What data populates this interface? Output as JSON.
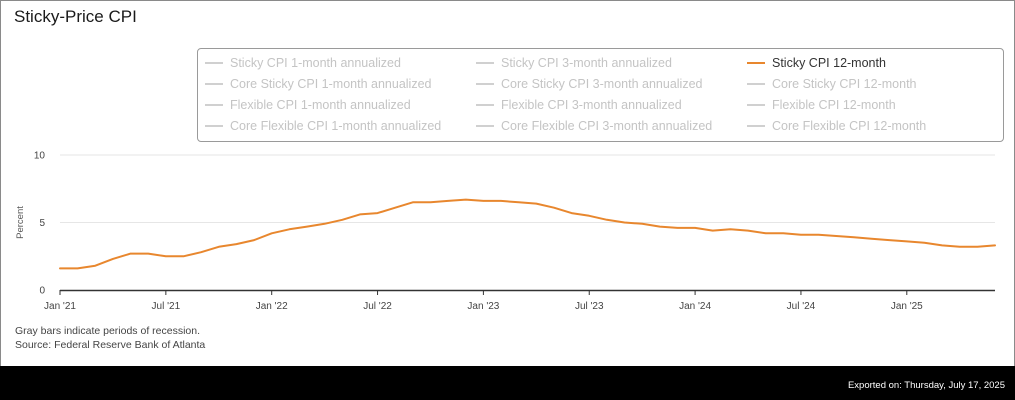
{
  "title": "Sticky-Price CPI",
  "legend": {
    "items": [
      {
        "label": "Sticky CPI 1-month annualized",
        "active": false
      },
      {
        "label": "Sticky CPI 3-month annualized",
        "active": false
      },
      {
        "label": "Sticky CPI 12-month",
        "active": true
      },
      {
        "label": "Core Sticky CPI 1-month annualized",
        "active": false
      },
      {
        "label": "Core Sticky CPI 3-month annualized",
        "active": false
      },
      {
        "label": "Core Sticky CPI 12-month",
        "active": false
      },
      {
        "label": "Flexible CPI 1-month annualized",
        "active": false
      },
      {
        "label": "Flexible CPI 3-month annualized",
        "active": false
      },
      {
        "label": "Flexible CPI 12-month",
        "active": false
      },
      {
        "label": "Core Flexible CPI 1-month annualized",
        "active": false
      },
      {
        "label": "Core Flexible CPI 3-month annualized",
        "active": false
      },
      {
        "label": "Core Flexible CPI 12-month",
        "active": false
      }
    ]
  },
  "notes": {
    "recession": "Gray bars indicate periods of recession.",
    "source": "Source: Federal Reserve Bank of Atlanta"
  },
  "footer": {
    "exported": "Exported on: Thursday, July 17, 2025"
  },
  "colors": {
    "series": "#e8872e",
    "grid": "#e6e6e6",
    "axis": "#333333"
  },
  "chart_data": {
    "type": "line",
    "title": "Sticky-Price CPI",
    "ylabel": "Percent",
    "xlabel": "",
    "ylim": [
      0,
      10
    ],
    "yticks": [
      0,
      5,
      10
    ],
    "xlim": [
      "2021-01",
      "2025-06"
    ],
    "xticks": [
      {
        "date": "2021-01",
        "label": "Jan '21"
      },
      {
        "date": "2021-07",
        "label": "Jul '21"
      },
      {
        "date": "2022-01",
        "label": "Jan '22"
      },
      {
        "date": "2022-07",
        "label": "Jul '22"
      },
      {
        "date": "2023-01",
        "label": "Jan '23"
      },
      {
        "date": "2023-07",
        "label": "Jul '23"
      },
      {
        "date": "2024-01",
        "label": "Jan '24"
      },
      {
        "date": "2024-07",
        "label": "Jul '24"
      },
      {
        "date": "2025-01",
        "label": "Jan '25"
      }
    ],
    "grid": true,
    "x": [
      "2021-01",
      "2021-02",
      "2021-03",
      "2021-04",
      "2021-05",
      "2021-06",
      "2021-07",
      "2021-08",
      "2021-09",
      "2021-10",
      "2021-11",
      "2021-12",
      "2022-01",
      "2022-02",
      "2022-03",
      "2022-04",
      "2022-05",
      "2022-06",
      "2022-07",
      "2022-08",
      "2022-09",
      "2022-10",
      "2022-11",
      "2022-12",
      "2023-01",
      "2023-02",
      "2023-03",
      "2023-04",
      "2023-05",
      "2023-06",
      "2023-07",
      "2023-08",
      "2023-09",
      "2023-10",
      "2023-11",
      "2023-12",
      "2024-01",
      "2024-02",
      "2024-03",
      "2024-04",
      "2024-05",
      "2024-06",
      "2024-07",
      "2024-08",
      "2024-09",
      "2024-10",
      "2024-11",
      "2024-12",
      "2025-01",
      "2025-02",
      "2025-03",
      "2025-04",
      "2025-05",
      "2025-06"
    ],
    "series": [
      {
        "name": "Sticky CPI 12-month",
        "values": [
          1.6,
          1.6,
          1.8,
          2.3,
          2.7,
          2.7,
          2.5,
          2.5,
          2.8,
          3.2,
          3.4,
          3.7,
          4.2,
          4.5,
          4.7,
          4.9,
          5.2,
          5.6,
          5.7,
          6.1,
          6.5,
          6.5,
          6.6,
          6.7,
          6.6,
          6.6,
          6.5,
          6.4,
          6.1,
          5.7,
          5.5,
          5.2,
          5.0,
          4.9,
          4.7,
          4.6,
          4.6,
          4.4,
          4.5,
          4.4,
          4.2,
          4.2,
          4.1,
          4.1,
          4.0,
          3.9,
          3.8,
          3.7,
          3.6,
          3.5,
          3.3,
          3.2,
          3.2,
          3.3
        ]
      }
    ]
  }
}
